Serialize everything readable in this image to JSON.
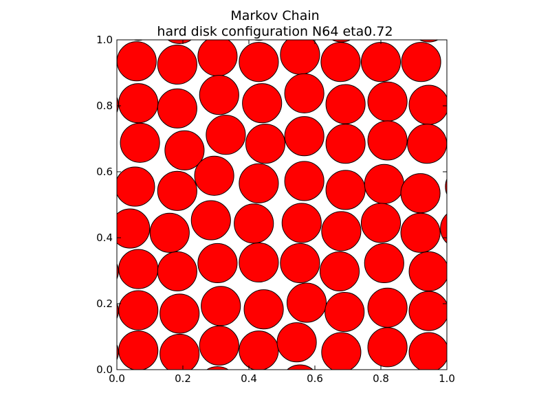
{
  "chart_data": {
    "type": "scatter",
    "title": "Markov Chain",
    "subtitle": "hard disk configuration N64 eta0.72",
    "xlabel": "",
    "ylabel": "",
    "xlim": [
      0.0,
      1.0
    ],
    "ylim": [
      0.0,
      1.0
    ],
    "x_ticks": [
      "0.0",
      "0.2",
      "0.4",
      "0.6",
      "0.8",
      "1.0"
    ],
    "y_ticks": [
      "0.0",
      "0.2",
      "0.4",
      "0.6",
      "0.8",
      "1.0"
    ],
    "grid": false,
    "legend": "none",
    "disk_color": "#ff0000",
    "disk_edge_color": "#000000",
    "disk_radius": 0.0595,
    "periodic_boundaries": true,
    "centers": [
      [
        0.06,
        0.935
      ],
      [
        0.183,
        0.925
      ],
      [
        0.305,
        0.95
      ],
      [
        0.43,
        0.933
      ],
      [
        0.555,
        0.955
      ],
      [
        0.678,
        0.933
      ],
      [
        0.8,
        0.933
      ],
      [
        0.922,
        0.933
      ],
      [
        0.065,
        0.808
      ],
      [
        0.183,
        0.792
      ],
      [
        0.31,
        0.833
      ],
      [
        0.44,
        0.808
      ],
      [
        0.568,
        0.838
      ],
      [
        0.693,
        0.805
      ],
      [
        0.82,
        0.813
      ],
      [
        0.945,
        0.803
      ],
      [
        0.07,
        0.688
      ],
      [
        0.205,
        0.665
      ],
      [
        0.33,
        0.712
      ],
      [
        0.45,
        0.685
      ],
      [
        0.568,
        0.708
      ],
      [
        0.693,
        0.685
      ],
      [
        0.82,
        0.695
      ],
      [
        0.94,
        0.685
      ],
      [
        0.055,
        0.555
      ],
      [
        0.183,
        0.542
      ],
      [
        0.295,
        0.588
      ],
      [
        0.43,
        0.565
      ],
      [
        0.568,
        0.572
      ],
      [
        0.693,
        0.545
      ],
      [
        0.81,
        0.563
      ],
      [
        0.92,
        0.535
      ],
      [
        0.04,
        0.428
      ],
      [
        0.16,
        0.415
      ],
      [
        0.285,
        0.453
      ],
      [
        0.415,
        0.443
      ],
      [
        0.56,
        0.445
      ],
      [
        0.68,
        0.42
      ],
      [
        0.8,
        0.445
      ],
      [
        0.92,
        0.415
      ],
      [
        0.065,
        0.305
      ],
      [
        0.183,
        0.298
      ],
      [
        0.305,
        0.323
      ],
      [
        0.43,
        0.325
      ],
      [
        0.555,
        0.323
      ],
      [
        0.675,
        0.298
      ],
      [
        0.81,
        0.323
      ],
      [
        0.945,
        0.298
      ],
      [
        0.065,
        0.18
      ],
      [
        0.19,
        0.17
      ],
      [
        0.315,
        0.193
      ],
      [
        0.445,
        0.183
      ],
      [
        0.575,
        0.203
      ],
      [
        0.69,
        0.175
      ],
      [
        0.82,
        0.188
      ],
      [
        0.945,
        0.178
      ],
      [
        0.065,
        0.058
      ],
      [
        0.19,
        0.048
      ],
      [
        0.31,
        0.073
      ],
      [
        0.43,
        0.058
      ],
      [
        0.545,
        0.083
      ],
      [
        0.68,
        0.053
      ],
      [
        0.82,
        0.068
      ],
      [
        0.945,
        0.053
      ]
    ]
  }
}
